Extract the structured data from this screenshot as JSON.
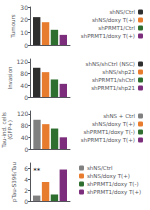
{
  "chart_data": [
    {
      "type": "bar",
      "ylabel": "Tumours",
      "categories": [
        null
      ],
      "series": [
        {
          "name": "shNS/Ctrl",
          "color": "#2e2e2e",
          "values": [
            22
          ]
        },
        {
          "name": "shNS/doxy T(+)",
          "color": "#e87c2e",
          "values": [
            18
          ]
        },
        {
          "name": "shPRMT1/Ctrl",
          "color": "#2e6e2e",
          "values": [
            12
          ]
        },
        {
          "name": "shPRMT1/doxy T(+)",
          "color": "#7c2e7c",
          "values": [
            8
          ]
        }
      ],
      "ylim": [
        0,
        30
      ],
      "yticks": [
        0,
        10,
        20,
        30
      ],
      "grid": false,
      "legend": "upper right"
    },
    {
      "type": "bar",
      "ylabel": "Invasion",
      "categories": [
        null
      ],
      "series": [
        {
          "name": "shNS/shCtrl (NSC)",
          "color": "#2e2e2e",
          "values": [
            100
          ]
        },
        {
          "name": "shNS/shp21",
          "color": "#e87c2e",
          "values": [
            85
          ]
        },
        {
          "name": "shPRMT1/shCtrl",
          "color": "#2e6e2e",
          "values": [
            60
          ]
        },
        {
          "name": "shPRMT1/shp21",
          "color": "#7c2e7c",
          "values": [
            45
          ]
        }
      ],
      "ylim": [
        0,
        130
      ],
      "yticks": [
        0,
        40,
        80,
        120
      ],
      "grid": false,
      "legend": "upper right"
    },
    {
      "type": "bar",
      "ylabel": "Tau-ind. cells\n(GFP+)",
      "categories": [
        null
      ],
      "series": [
        {
          "name": "shNS + Ctrl",
          "color": "#808080",
          "values": [
            100
          ]
        },
        {
          "name": "shNS/doxy T(+)",
          "color": "#e87c2e",
          "values": [
            85
          ]
        },
        {
          "name": "shPRMT1/doxy T(-)",
          "color": "#2e6e2e",
          "values": [
            70
          ]
        },
        {
          "name": "shPRMT1/doxy T(+)",
          "color": "#7c2e7c",
          "values": [
            40
          ]
        }
      ],
      "ylim": [
        0,
        130
      ],
      "yticks": [
        0,
        40,
        80,
        120
      ],
      "grid": false,
      "legend": "upper right"
    },
    {
      "type": "bar",
      "ylabel": "pTau-S396/Tau",
      "categories": [
        null
      ],
      "series": [
        {
          "name": "shNS/Ctrl",
          "color": "#808080",
          "values": [
            1.0
          ]
        },
        {
          "name": "shNS/doxy T(+)",
          "color": "#e87c2e",
          "values": [
            3.5
          ]
        },
        {
          "name": "shPRMT1/doxy T(-)",
          "color": "#2e6e2e",
          "values": [
            1.2
          ]
        },
        {
          "name": "shPRMT1/doxy T(+)",
          "color": "#7c2e7c",
          "values": [
            5.8
          ]
        }
      ],
      "ylim": [
        0,
        7
      ],
      "yticks": [
        0,
        2,
        4,
        6
      ],
      "grid": false,
      "legend": "upper left",
      "annotations": [
        {
          "text": "**",
          "y": 5.5
        }
      ]
    }
  ]
}
